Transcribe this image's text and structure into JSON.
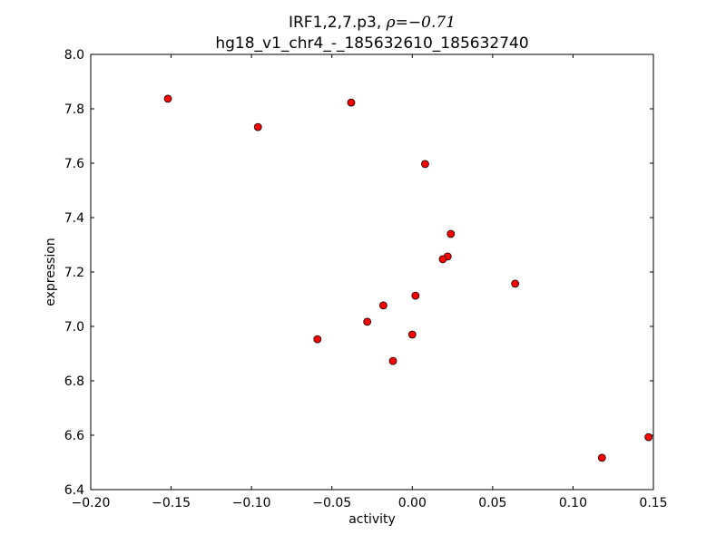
{
  "chart_data": {
    "type": "scatter",
    "title_line1_prefix": "IRF1,2,7.p3, ",
    "title_line1_math": "ρ=−0.71",
    "title_line2": "hg18_v1_chr4_-_185632610_185632740",
    "xlabel": "activity",
    "ylabel": "expression",
    "xlim": [
      -0.2,
      0.15
    ],
    "ylim": [
      6.4,
      8.0
    ],
    "xticks": [
      -0.2,
      -0.15,
      -0.1,
      -0.05,
      0.0,
      0.05,
      0.1,
      0.15
    ],
    "xtick_labels": [
      "−0.20",
      "−0.15",
      "−0.10",
      "−0.05",
      "0.00",
      "0.05",
      "0.10",
      "0.15"
    ],
    "yticks": [
      6.4,
      6.6,
      6.8,
      7.0,
      7.2,
      7.4,
      7.6,
      7.8,
      8.0
    ],
    "ytick_labels": [
      "6.4",
      "6.6",
      "6.8",
      "7.0",
      "7.2",
      "7.4",
      "7.6",
      "7.8",
      "8.0"
    ],
    "grid": false,
    "marker_color": "#ff0000",
    "marker_edge": "#000000",
    "points": [
      {
        "x": -0.152,
        "y": 7.837
      },
      {
        "x": -0.096,
        "y": 7.733
      },
      {
        "x": -0.038,
        "y": 7.823
      },
      {
        "x": 0.008,
        "y": 7.597
      },
      {
        "x": 0.024,
        "y": 7.34
      },
      {
        "x": 0.022,
        "y": 7.257
      },
      {
        "x": 0.019,
        "y": 7.247
      },
      {
        "x": 0.064,
        "y": 7.157
      },
      {
        "x": 0.002,
        "y": 7.113
      },
      {
        "x": -0.018,
        "y": 7.077
      },
      {
        "x": -0.028,
        "y": 7.017
      },
      {
        "x": -0.059,
        "y": 6.953
      },
      {
        "x": 0.0,
        "y": 6.97
      },
      {
        "x": -0.012,
        "y": 6.873
      },
      {
        "x": 0.118,
        "y": 6.517
      },
      {
        "x": 0.147,
        "y": 6.593
      }
    ]
  }
}
